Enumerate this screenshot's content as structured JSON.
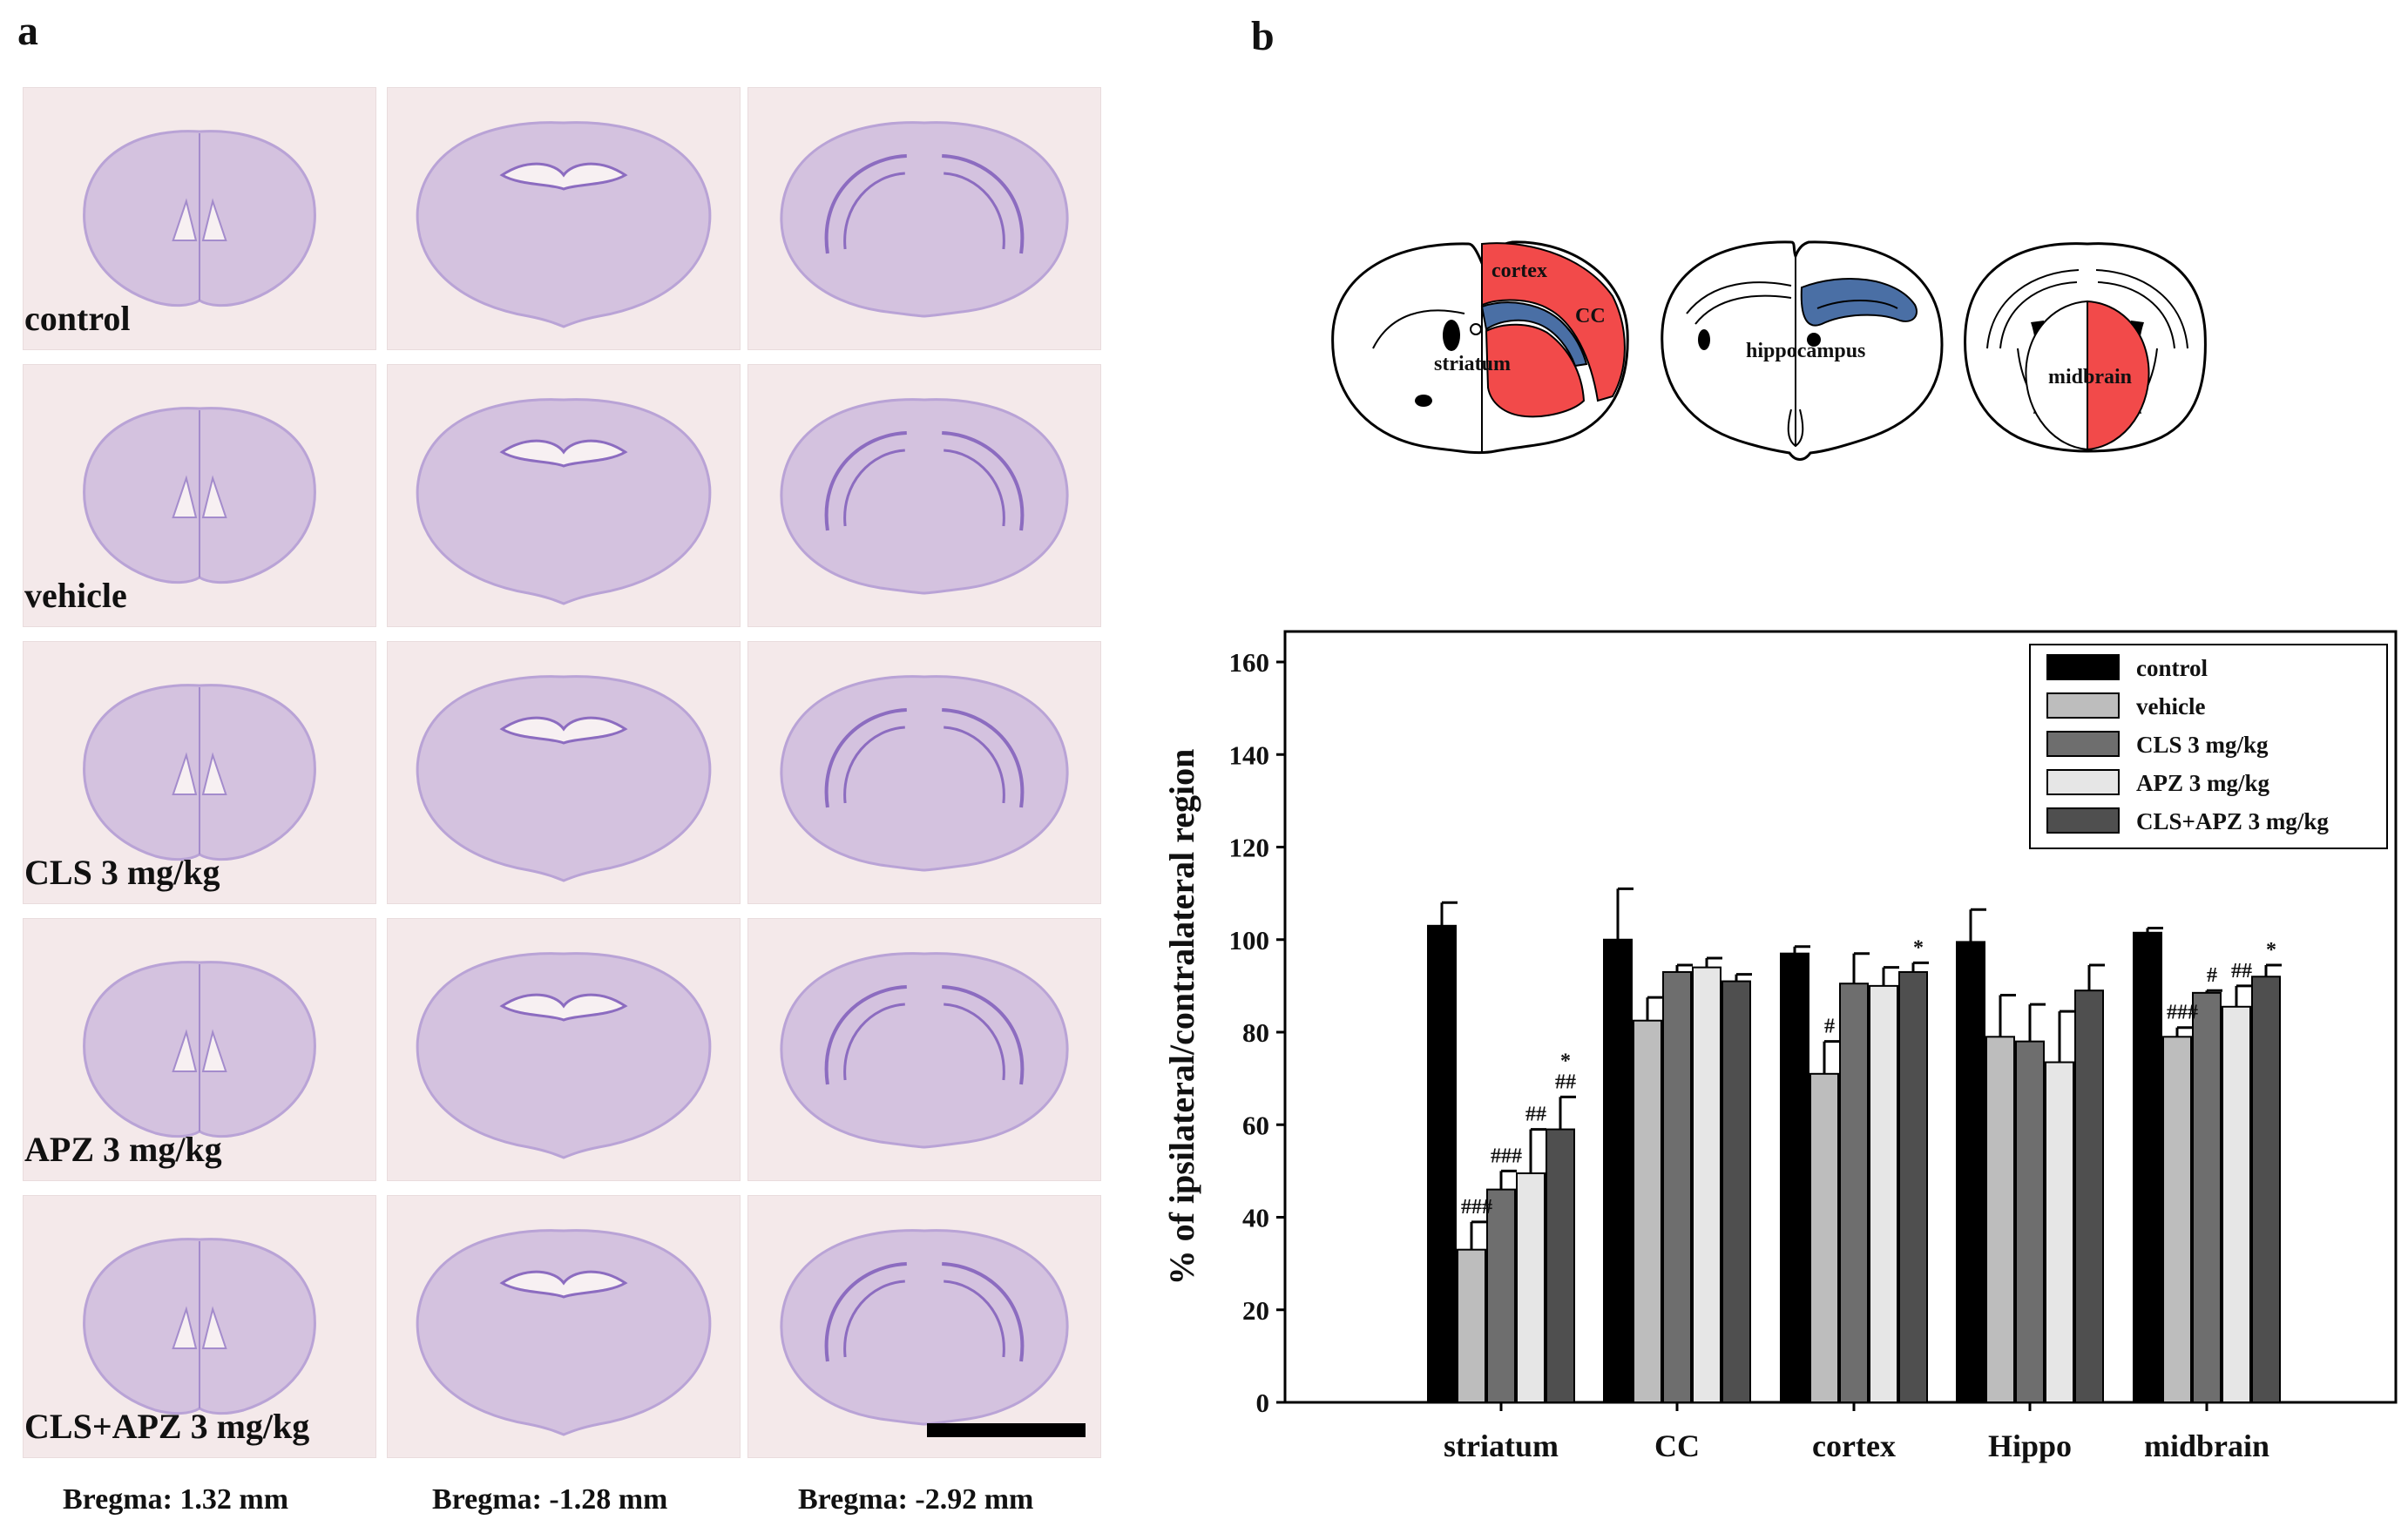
{
  "panel_a": {
    "letter": "a",
    "rows": [
      "control",
      "vehicle",
      "CLS 3 mg/kg",
      "APZ 3 mg/kg",
      "CLS+APZ 3 mg/kg"
    ],
    "columns": [
      "Bregma: 1.32 mm",
      "Bregma: -1.28 mm",
      "Bregma: -2.92 mm"
    ],
    "stain_color": "#b9a3d6",
    "background_color": "#f4e9ea"
  },
  "panel_b": {
    "letter": "b",
    "schematic_labels": {
      "cortex": "cortex",
      "cc": "CC",
      "striatum": "striatum",
      "hippocampus": "hippocampus",
      "midbrain": "midbrain"
    },
    "colors": {
      "red_region": "#f24a4a",
      "blue_region": "#4a6fa5"
    }
  },
  "chart_data": {
    "type": "bar",
    "title": "",
    "xlabel": "",
    "ylabel": "% of ipsilateral/contralateral region",
    "ylim": [
      0,
      165
    ],
    "yticks": [
      0,
      20,
      40,
      60,
      80,
      100,
      120,
      140,
      160
    ],
    "categories": [
      "striatum",
      "CC",
      "cortex",
      "Hippo",
      "midbrain"
    ],
    "legend_position": "top-right",
    "series": [
      {
        "name": "control",
        "color": "#000000",
        "values": [
          103,
          100,
          97,
          99.5,
          101.5
        ],
        "errors": [
          5,
          11,
          1.5,
          7,
          1
        ]
      },
      {
        "name": "vehicle",
        "color": "#bdbdbd",
        "values": [
          33,
          82.5,
          71,
          79,
          79
        ],
        "errors": [
          6,
          5,
          7,
          9,
          2
        ]
      },
      {
        "name": "CLS 3 mg/kg",
        "color": "#6e6e6e",
        "values": [
          46,
          93,
          90.5,
          78,
          88.5
        ],
        "errors": [
          4,
          1.5,
          6.5,
          8,
          0.5
        ]
      },
      {
        "name": "APZ 3 mg/kg",
        "color": "#e6e6e6",
        "values": [
          49.5,
          94,
          90,
          73.5,
          85.5
        ],
        "errors": [
          9.5,
          2,
          4,
          11,
          4.5
        ]
      },
      {
        "name": "CLS+APZ 3 mg/kg",
        "color": "#4f4f4f",
        "values": [
          59,
          91,
          93,
          89,
          92
        ],
        "errors": [
          7,
          1.5,
          2,
          5.5,
          2.5
        ]
      }
    ],
    "annotations": [
      {
        "category": "striatum",
        "series": "vehicle",
        "text": "###"
      },
      {
        "category": "striatum",
        "series": "CLS 3 mg/kg",
        "text": "###"
      },
      {
        "category": "striatum",
        "series": "APZ 3 mg/kg",
        "text": "##"
      },
      {
        "category": "striatum",
        "series": "CLS+APZ 3 mg/kg",
        "text": "##"
      },
      {
        "category": "striatum",
        "series": "CLS+APZ 3 mg/kg",
        "text": "*"
      },
      {
        "category": "cortex",
        "series": "vehicle",
        "text": "#"
      },
      {
        "category": "cortex",
        "series": "CLS+APZ 3 mg/kg",
        "text": "*"
      },
      {
        "category": "midbrain",
        "series": "vehicle",
        "text": "###"
      },
      {
        "category": "midbrain",
        "series": "CLS 3 mg/kg",
        "text": "#"
      },
      {
        "category": "midbrain",
        "series": "APZ 3 mg/kg",
        "text": "##"
      },
      {
        "category": "midbrain",
        "series": "CLS+APZ 3 mg/kg",
        "text": "*"
      }
    ]
  }
}
